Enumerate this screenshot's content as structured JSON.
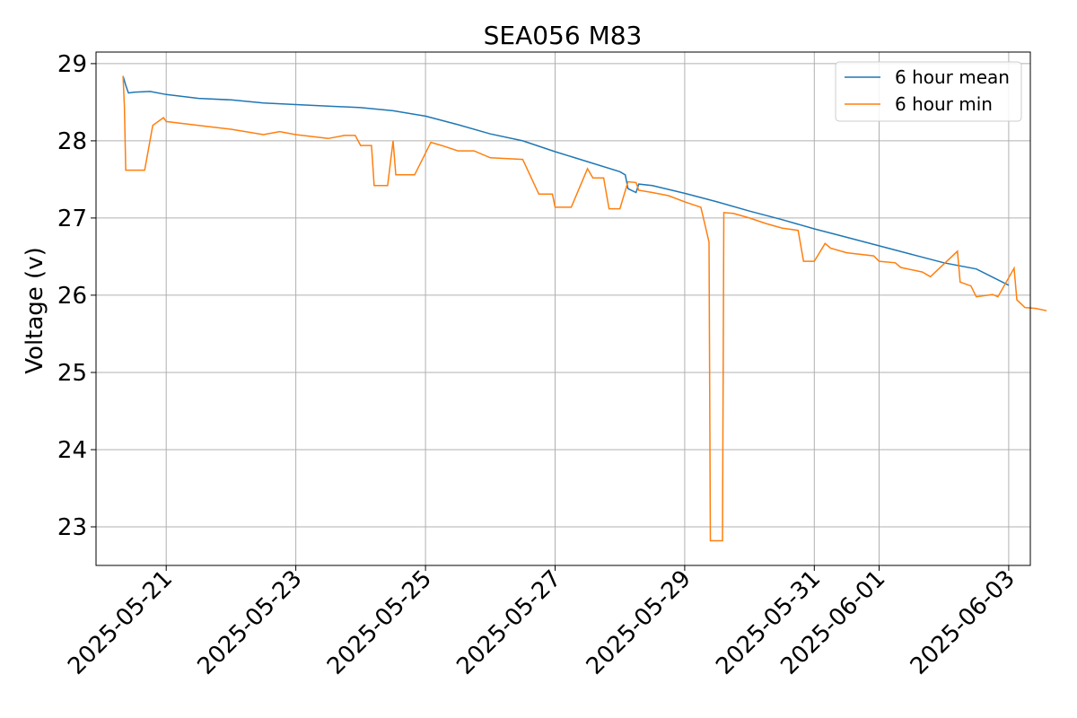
{
  "chart_data": {
    "type": "line",
    "title": "SEA056 M83",
    "xlabel": "",
    "ylabel": "Voltage (v)",
    "xlim": [
      "2025-05-19T22:00",
      "2025-06-03T08:00"
    ],
    "ylim": [
      22.5,
      29.15
    ],
    "xticks": [
      "2025-05-21",
      "2025-05-23",
      "2025-05-25",
      "2025-05-27",
      "2025-05-29",
      "2025-05-31",
      "2025-06-01",
      "2025-06-03"
    ],
    "yticks": [
      23,
      24,
      25,
      26,
      27,
      28,
      29
    ],
    "grid": true,
    "legend": "top-right",
    "series": [
      {
        "name": "6 hour mean",
        "color": "#1f77b4",
        "points": [
          [
            "2025-05-20T08:00",
            28.84
          ],
          [
            "2025-05-20T09:00",
            28.72
          ],
          [
            "2025-05-20T10:00",
            28.62
          ],
          [
            "2025-05-20T12:00",
            28.63
          ],
          [
            "2025-05-20T18:00",
            28.64
          ],
          [
            "2025-05-21T00:00",
            28.6
          ],
          [
            "2025-05-21T12:00",
            28.55
          ],
          [
            "2025-05-22T00:00",
            28.53
          ],
          [
            "2025-05-22T12:00",
            28.49
          ],
          [
            "2025-05-23T00:00",
            28.47
          ],
          [
            "2025-05-23T12:00",
            28.45
          ],
          [
            "2025-05-24T00:00",
            28.43
          ],
          [
            "2025-05-24T12:00",
            28.39
          ],
          [
            "2025-05-25T00:00",
            28.32
          ],
          [
            "2025-05-25T12:00",
            28.21
          ],
          [
            "2025-05-26T00:00",
            28.09
          ],
          [
            "2025-05-26T12:00",
            28.0
          ],
          [
            "2025-05-27T00:00",
            27.86
          ],
          [
            "2025-05-27T12:00",
            27.73
          ],
          [
            "2025-05-28T00:00",
            27.6
          ],
          [
            "2025-05-28T02:00",
            27.56
          ],
          [
            "2025-05-28T03:00",
            27.38
          ],
          [
            "2025-05-28T06:00",
            27.33
          ],
          [
            "2025-05-28T07:00",
            27.44
          ],
          [
            "2025-05-28T12:00",
            27.42
          ],
          [
            "2025-05-29T00:00",
            27.32
          ],
          [
            "2025-05-29T12:00",
            27.21
          ],
          [
            "2025-05-30T00:00",
            27.09
          ],
          [
            "2025-05-30T12:00",
            26.98
          ],
          [
            "2025-05-31T00:00",
            26.86
          ],
          [
            "2025-05-31T12:00",
            26.75
          ],
          [
            "2025-06-01T00:00",
            26.64
          ],
          [
            "2025-06-01T12:00",
            26.53
          ],
          [
            "2025-06-02T00:00",
            26.42
          ],
          [
            "2025-06-02T12:00",
            26.34
          ],
          [
            "2025-06-03T00:00",
            26.13
          ]
        ]
      },
      {
        "name": "6 hour min",
        "color": "#ff7f0e",
        "points": [
          [
            "2025-05-20T08:00",
            28.84
          ],
          [
            "2025-05-20T08:30",
            28.45
          ],
          [
            "2025-05-20T09:00",
            27.62
          ],
          [
            "2025-05-20T16:00",
            27.62
          ],
          [
            "2025-05-20T19:00",
            28.2
          ],
          [
            "2025-05-20T23:00",
            28.3
          ],
          [
            "2025-05-21T00:00",
            28.25
          ],
          [
            "2025-05-21T12:00",
            28.2
          ],
          [
            "2025-05-22T00:00",
            28.15
          ],
          [
            "2025-05-22T12:00",
            28.08
          ],
          [
            "2025-05-22T18:00",
            28.12
          ],
          [
            "2025-05-23T00:00",
            28.08
          ],
          [
            "2025-05-23T12:00",
            28.03
          ],
          [
            "2025-05-23T18:00",
            28.07
          ],
          [
            "2025-05-23T22:00",
            28.07
          ],
          [
            "2025-05-24T00:00",
            27.94
          ],
          [
            "2025-05-24T04:00",
            27.94
          ],
          [
            "2025-05-24T05:00",
            27.42
          ],
          [
            "2025-05-24T10:00",
            27.42
          ],
          [
            "2025-05-24T12:00",
            28.0
          ],
          [
            "2025-05-24T13:00",
            27.56
          ],
          [
            "2025-05-24T20:00",
            27.56
          ],
          [
            "2025-05-25T02:00",
            27.98
          ],
          [
            "2025-05-25T06:00",
            27.94
          ],
          [
            "2025-05-25T12:00",
            27.87
          ],
          [
            "2025-05-25T18:00",
            27.87
          ],
          [
            "2025-05-26T00:00",
            27.78
          ],
          [
            "2025-05-26T12:00",
            27.76
          ],
          [
            "2025-05-26T18:00",
            27.31
          ],
          [
            "2025-05-26T23:00",
            27.31
          ],
          [
            "2025-05-27T00:00",
            27.14
          ],
          [
            "2025-05-27T06:00",
            27.14
          ],
          [
            "2025-05-27T12:00",
            27.64
          ],
          [
            "2025-05-27T14:00",
            27.52
          ],
          [
            "2025-05-27T18:00",
            27.52
          ],
          [
            "2025-05-27T20:00",
            27.12
          ],
          [
            "2025-05-28T00:00",
            27.12
          ],
          [
            "2025-05-28T03:00",
            27.47
          ],
          [
            "2025-05-28T06:00",
            27.46
          ],
          [
            "2025-05-28T07:00",
            27.36
          ],
          [
            "2025-05-28T12:00",
            27.33
          ],
          [
            "2025-05-28T18:00",
            27.29
          ],
          [
            "2025-05-29T00:00",
            27.21
          ],
          [
            "2025-05-29T06:00",
            27.14
          ],
          [
            "2025-05-29T09:00",
            26.69
          ],
          [
            "2025-05-29T09:30",
            22.82
          ],
          [
            "2025-05-29T14:00",
            22.82
          ],
          [
            "2025-05-29T14:30",
            27.07
          ],
          [
            "2025-05-29T18:00",
            27.06
          ],
          [
            "2025-05-30T00:00",
            27.0
          ],
          [
            "2025-05-30T06:00",
            26.93
          ],
          [
            "2025-05-30T12:00",
            26.87
          ],
          [
            "2025-05-30T18:00",
            26.84
          ],
          [
            "2025-05-30T20:00",
            26.44
          ],
          [
            "2025-05-31T00:00",
            26.44
          ],
          [
            "2025-05-31T04:00",
            26.67
          ],
          [
            "2025-05-31T06:00",
            26.61
          ],
          [
            "2025-05-31T12:00",
            26.55
          ],
          [
            "2025-05-31T22:00",
            26.51
          ],
          [
            "2025-06-01T00:00",
            26.44
          ],
          [
            "2025-06-01T06:00",
            26.42
          ],
          [
            "2025-06-01T08:00",
            26.36
          ],
          [
            "2025-06-01T16:00",
            26.3
          ],
          [
            "2025-06-01T19:00",
            26.24
          ],
          [
            "2025-06-02T05:00",
            26.57
          ],
          [
            "2025-06-02T06:00",
            26.17
          ],
          [
            "2025-06-02T10:00",
            26.12
          ],
          [
            "2025-06-02T12:00",
            25.98
          ],
          [
            "2025-06-02T18:00",
            26.01
          ],
          [
            "2025-06-02T20:00",
            25.98
          ],
          [
            "2025-06-03T02:00",
            26.35
          ],
          [
            "2025-06-03T03:00",
            25.94
          ],
          [
            "2025-06-03T06:00",
            25.84
          ],
          [
            "2025-06-03T10:00",
            25.83
          ],
          [
            "2025-06-03T14:00",
            25.8
          ]
        ]
      }
    ]
  }
}
